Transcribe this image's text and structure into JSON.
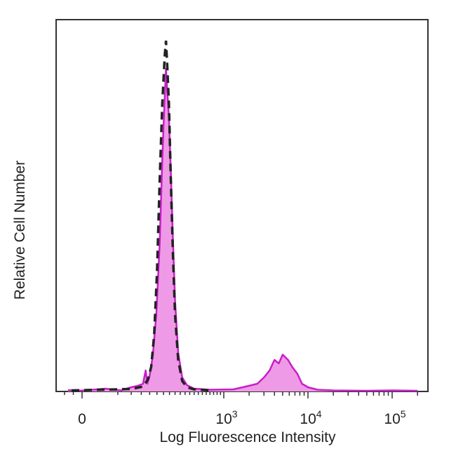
{
  "chart_data": {
    "type": "area",
    "xlabel": "Log Fluorescence Intensity",
    "ylabel": "Relative Cell Number",
    "x_scale": "biexponential",
    "x_ticks": [
      {
        "value": 0,
        "base": "0",
        "exp": ""
      },
      {
        "value": 1000,
        "base": "10",
        "exp": "3"
      },
      {
        "value": 10000,
        "base": "10",
        "exp": "4"
      },
      {
        "value": 100000,
        "base": "10",
        "exp": "5"
      }
    ],
    "ylim": [
      0,
      100
    ],
    "grid": false,
    "legend": "none",
    "series": [
      {
        "style": "filled",
        "color": "#c81ec8",
        "fill": "#ee9ae6",
        "points": [
          [
            -80,
            0.4
          ],
          [
            -20,
            0.2
          ],
          [
            20,
            0.8
          ],
          [
            60,
            0.3
          ],
          [
            100,
            1.2
          ],
          [
            130,
            1.6
          ],
          [
            160,
            2.2
          ],
          [
            175,
            6
          ],
          [
            185,
            2.2
          ],
          [
            200,
            4.5
          ],
          [
            220,
            10
          ],
          [
            245,
            22
          ],
          [
            270,
            42
          ],
          [
            290,
            66
          ],
          [
            305,
            80
          ],
          [
            320,
            92
          ],
          [
            330,
            86
          ],
          [
            345,
            78
          ],
          [
            360,
            64
          ],
          [
            380,
            44
          ],
          [
            400,
            26
          ],
          [
            430,
            11
          ],
          [
            470,
            4
          ],
          [
            520,
            1.8
          ],
          [
            600,
            0.8
          ],
          [
            800,
            0.5
          ],
          [
            1300,
            0.6
          ],
          [
            1900,
            1.5
          ],
          [
            2500,
            2.2
          ],
          [
            3000,
            4
          ],
          [
            3500,
            6
          ],
          [
            4000,
            9
          ],
          [
            4500,
            8
          ],
          [
            5000,
            10.5
          ],
          [
            5800,
            9
          ],
          [
            6500,
            7
          ],
          [
            7500,
            5
          ],
          [
            8500,
            2.2
          ],
          [
            10000,
            1.2
          ],
          [
            13000,
            0.5
          ],
          [
            20000,
            0.3
          ],
          [
            50000,
            0.2
          ],
          [
            100000,
            0.3
          ],
          [
            200000,
            0.2
          ]
        ]
      },
      {
        "style": "dashed",
        "color": "#222222",
        "points": [
          [
            -60,
            0.3
          ],
          [
            100,
            0.7
          ],
          [
            160,
            1.4
          ],
          [
            190,
            3.5
          ],
          [
            210,
            7
          ],
          [
            230,
            16
          ],
          [
            250,
            34
          ],
          [
            270,
            60
          ],
          [
            290,
            82
          ],
          [
            310,
            96
          ],
          [
            320,
            100
          ],
          [
            332,
            92
          ],
          [
            345,
            82
          ],
          [
            360,
            62
          ],
          [
            380,
            40
          ],
          [
            400,
            22
          ],
          [
            430,
            9
          ],
          [
            470,
            3
          ],
          [
            520,
            1.2
          ],
          [
            600,
            0.6
          ],
          [
            800,
            0.3
          ]
        ]
      }
    ]
  }
}
